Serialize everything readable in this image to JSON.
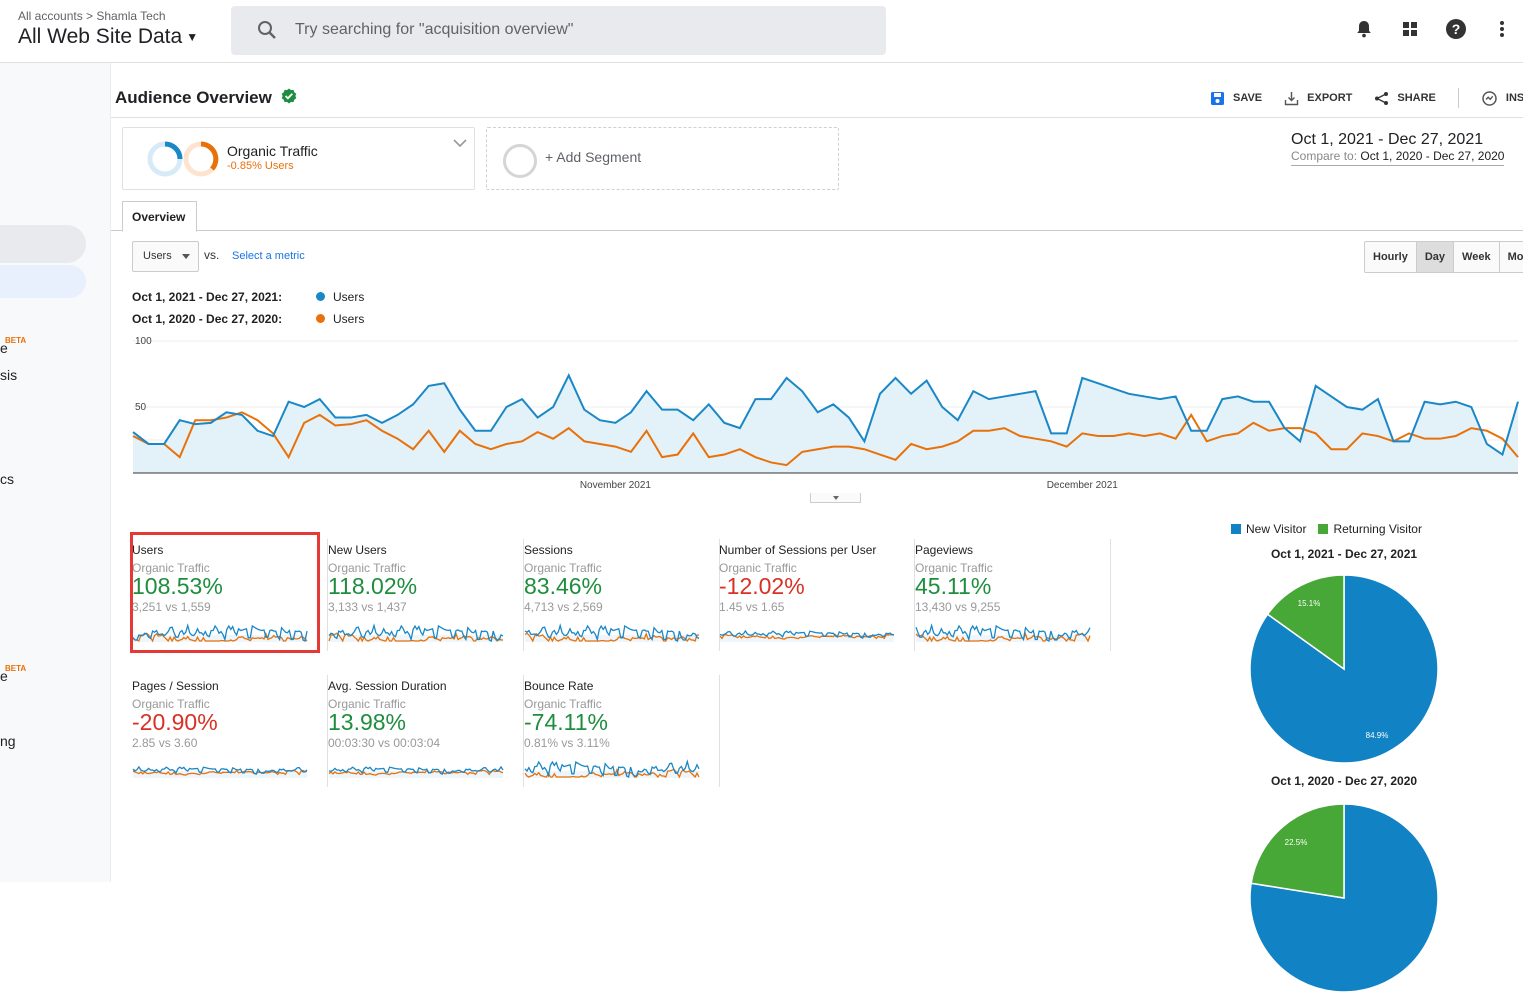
{
  "header": {
    "breadcrumb": "All accounts > Shamla Tech",
    "property": "All Web Site Data",
    "search_placeholder": "Try searching for \"acquisition overview\""
  },
  "sidebar": {
    "beta_label": "BETA",
    "fragments": [
      "e",
      "sis",
      "cs",
      "e",
      "ng"
    ]
  },
  "report": {
    "title": "Audience Overview",
    "actions": [
      "SAVE",
      "EXPORT",
      "SHARE",
      "INSIG"
    ]
  },
  "segment": {
    "name": "Organic Traffic",
    "change": "-0.85% Users",
    "add_label": "+ Add Segment"
  },
  "date_range": {
    "primary": "Oct 1, 2021 - Dec 27, 2021",
    "compare_label": "Compare to:",
    "compare": "Oct 1, 2020 - Dec 27, 2020"
  },
  "tabs": [
    "Overview"
  ],
  "controls": {
    "metric": "Users",
    "vs": "vs.",
    "select_metric": "Select a metric",
    "granularity": [
      "Hourly",
      "Day",
      "Week",
      "Mont"
    ],
    "active_granularity": "Day"
  },
  "colors": {
    "current": "#1a87c6",
    "previous": "#e8710a",
    "new_visitor": "#1182c3",
    "returning_visitor": "#47a737"
  },
  "chart_data": [
    {
      "type": "line",
      "title": "Users",
      "legend": [
        {
          "range": "Oct 1, 2021 - Dec 27, 2021:",
          "series": "Users"
        },
        {
          "range": "Oct 1, 2020 - Dec 27, 2020:",
          "series": "Users"
        }
      ],
      "y_ticks": [
        "100",
        "50"
      ],
      "ylim": [
        0,
        100
      ],
      "x_tick_labels": [
        {
          "label": "November 2021",
          "index": 31
        },
        {
          "label": "December 2021",
          "index": 61
        }
      ],
      "series": [
        {
          "name": "Users (Oct 1, 2021 - Dec 27, 2021)",
          "values": [
            31,
            22,
            22,
            40,
            37,
            38,
            46,
            44,
            32,
            28,
            54,
            50,
            56,
            42,
            42,
            44,
            38,
            44,
            52,
            66,
            68,
            48,
            32,
            32,
            50,
            56,
            42,
            50,
            74,
            48,
            40,
            38,
            46,
            62,
            48,
            48,
            40,
            52,
            38,
            34,
            56,
            56,
            72,
            62,
            46,
            52,
            42,
            24,
            60,
            72,
            60,
            70,
            50,
            40,
            62,
            56,
            58,
            60,
            62,
            30,
            30,
            72,
            68,
            64,
            60,
            58,
            56,
            58,
            32,
            32,
            56,
            58,
            54,
            54,
            34,
            24,
            66,
            58,
            50,
            48,
            56,
            24,
            24,
            54,
            52,
            54,
            50,
            22,
            14,
            54
          ]
        },
        {
          "name": "Users (Oct 1, 2020 - Dec 27, 2020)",
          "values": [
            28,
            22,
            22,
            12,
            40,
            40,
            42,
            46,
            40,
            30,
            12,
            38,
            44,
            36,
            37,
            40,
            32,
            26,
            18,
            32,
            16,
            32,
            22,
            18,
            22,
            24,
            31,
            26,
            34,
            24,
            22,
            20,
            16,
            32,
            12,
            14,
            30,
            12,
            14,
            18,
            12,
            8,
            6,
            16,
            18,
            20,
            20,
            18,
            14,
            10,
            22,
            18,
            20,
            24,
            32,
            32,
            34,
            28,
            26,
            24,
            20,
            30,
            28,
            28,
            30,
            28,
            30,
            26,
            44,
            24,
            28,
            30,
            38,
            32,
            34,
            34,
            30,
            18,
            18,
            30,
            28,
            24,
            30,
            26,
            26,
            28,
            34,
            32,
            26,
            12
          ]
        }
      ]
    },
    {
      "type": "pie",
      "title": "Oct 1, 2021 - Dec 27, 2021",
      "legend": [
        "New Visitor",
        "Returning Visitor"
      ],
      "slices": [
        {
          "label": "New Visitor",
          "value": 84.9
        },
        {
          "label": "Returning Visitor",
          "value": 15.1
        }
      ],
      "data_labels": [
        "84.9%",
        "15.1%"
      ]
    },
    {
      "type": "pie",
      "title": "Oct 1, 2020 - Dec 27, 2020",
      "legend": [
        "New Visitor",
        "Returning Visitor"
      ],
      "slices": [
        {
          "label": "New Visitor",
          "value": 77.5
        },
        {
          "label": "Returning Visitor",
          "value": 22.5
        }
      ],
      "data_labels": [
        "22.5%"
      ]
    }
  ],
  "metrics": [
    {
      "name": "Users",
      "segment": "Organic Traffic",
      "value": "108.53%",
      "compare": "3,251 vs 1,559",
      "trend": "positive",
      "highlighted": true
    },
    {
      "name": "New Users",
      "segment": "Organic Traffic",
      "value": "118.02%",
      "compare": "3,133 vs 1,437",
      "trend": "positive"
    },
    {
      "name": "Sessions",
      "segment": "Organic Traffic",
      "value": "83.46%",
      "compare": "4,713 vs 2,569",
      "trend": "positive"
    },
    {
      "name": "Number of Sessions per User",
      "segment": "Organic Traffic",
      "value": "-12.02%",
      "compare": "1.45 vs 1.65",
      "trend": "negative"
    },
    {
      "name": "Pageviews",
      "segment": "Organic Traffic",
      "value": "45.11%",
      "compare": "13,430 vs 9,255",
      "trend": "positive"
    },
    {
      "name": "Pages / Session",
      "segment": "Organic Traffic",
      "value": "-20.90%",
      "compare": "2.85 vs 3.60",
      "trend": "negative"
    },
    {
      "name": "Avg. Session Duration",
      "segment": "Organic Traffic",
      "value": "13.98%",
      "compare": "00:03:30 vs 00:03:04",
      "trend": "positive"
    },
    {
      "name": "Bounce Rate",
      "segment": "Organic Traffic",
      "value": "-74.11%",
      "compare": "0.81% vs 3.11%",
      "trend": "positive"
    }
  ]
}
